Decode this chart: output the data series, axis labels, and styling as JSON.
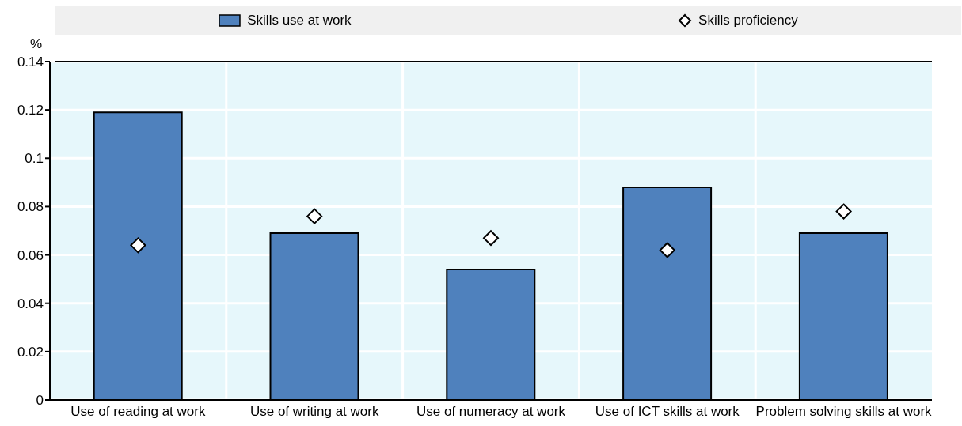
{
  "chart_data": {
    "type": "bar",
    "ylabel": "%",
    "categories": [
      "Use of reading at work",
      "Use of writing at work",
      "Use of numeracy at work",
      "Use of ICT skills at work",
      "Problem solving skills at work"
    ],
    "series": [
      {
        "name": "Skills use at work",
        "color": "#4f81bd",
        "values": [
          0.119,
          0.069,
          0.054,
          0.088,
          0.069
        ]
      },
      {
        "name": "Skills proficiency",
        "type": "scatter",
        "color": "#ffffff",
        "marker": "diamond",
        "values": [
          0.064,
          0.076,
          0.067,
          0.062,
          0.078
        ]
      }
    ],
    "ylim": [
      0,
      0.14
    ],
    "yticks": [
      0,
      0.02,
      0.04,
      0.06,
      0.08,
      0.1,
      0.12,
      0.14
    ],
    "grid": true,
    "legend": "top"
  }
}
